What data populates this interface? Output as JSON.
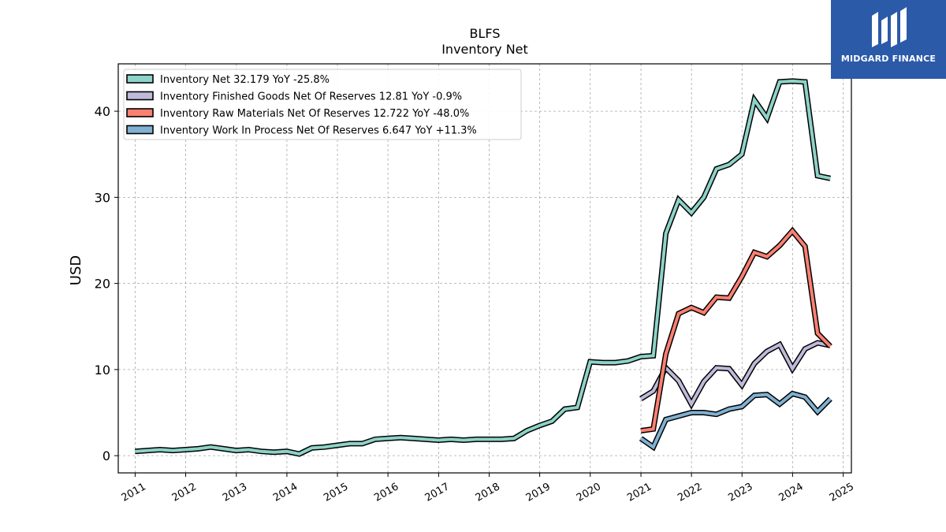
{
  "chart_data": {
    "type": "line",
    "title": "BLFS",
    "subtitle": "Inventory Net",
    "xlabel": "",
    "ylabel": "USD",
    "xlim": [
      "2010-09-01",
      "2025-03-01"
    ],
    "ylim": [
      -2,
      45.5
    ],
    "x_ticks": [
      "2011",
      "2012",
      "2013",
      "2014",
      "2015",
      "2016",
      "2017",
      "2018",
      "2019",
      "2020",
      "2021",
      "2022",
      "2023",
      "2024",
      "2025"
    ],
    "y_ticks": [
      0,
      10,
      20,
      30,
      40
    ],
    "grid": true,
    "legend_position": "upper-left",
    "series": [
      {
        "name": "Inventory Net",
        "legend": "Inventory Net  32.179 YoY -25.8%",
        "color": "#8dd3c7",
        "points": [
          [
            "2010-12-31",
            0.5
          ],
          [
            "2011-03-31",
            0.6
          ],
          [
            "2011-06-30",
            0.7
          ],
          [
            "2011-09-30",
            0.6
          ],
          [
            "2011-12-31",
            0.7
          ],
          [
            "2012-03-31",
            0.8
          ],
          [
            "2012-06-30",
            1.0
          ],
          [
            "2012-09-30",
            0.8
          ],
          [
            "2012-12-31",
            0.6
          ],
          [
            "2013-03-31",
            0.7
          ],
          [
            "2013-06-30",
            0.5
          ],
          [
            "2013-09-30",
            0.4
          ],
          [
            "2013-12-31",
            0.5
          ],
          [
            "2014-03-31",
            0.2
          ],
          [
            "2014-06-30",
            0.9
          ],
          [
            "2014-09-30",
            1.0
          ],
          [
            "2014-12-31",
            1.2
          ],
          [
            "2015-03-31",
            1.4
          ],
          [
            "2015-06-30",
            1.4
          ],
          [
            "2015-09-30",
            1.9
          ],
          [
            "2015-12-31",
            2.0
          ],
          [
            "2016-03-31",
            2.1
          ],
          [
            "2016-06-30",
            2.0
          ],
          [
            "2016-09-30",
            1.9
          ],
          [
            "2016-12-31",
            1.8
          ],
          [
            "2017-03-31",
            1.9
          ],
          [
            "2017-06-30",
            1.8
          ],
          [
            "2017-09-30",
            1.9
          ],
          [
            "2017-12-31",
            1.9
          ],
          [
            "2018-03-31",
            1.9
          ],
          [
            "2018-06-30",
            2.0
          ],
          [
            "2018-09-30",
            2.9
          ],
          [
            "2018-12-31",
            3.5
          ],
          [
            "2019-03-31",
            4.0
          ],
          [
            "2019-06-30",
            5.4
          ],
          [
            "2019-09-30",
            5.6
          ],
          [
            "2019-12-31",
            10.9
          ],
          [
            "2020-03-31",
            10.8
          ],
          [
            "2020-06-30",
            10.8
          ],
          [
            "2020-09-30",
            11.0
          ],
          [
            "2020-12-31",
            11.5
          ],
          [
            "2021-03-31",
            11.6
          ],
          [
            "2021-06-30",
            25.8
          ],
          [
            "2021-09-30",
            29.7
          ],
          [
            "2021-12-31",
            28.2
          ],
          [
            "2022-03-31",
            30.0
          ],
          [
            "2022-06-30",
            33.3
          ],
          [
            "2022-09-30",
            33.8
          ],
          [
            "2022-12-31",
            35.0
          ],
          [
            "2023-03-31",
            41.3
          ],
          [
            "2023-06-30",
            39.2
          ],
          [
            "2023-09-30",
            43.4
          ],
          [
            "2023-12-31",
            43.5
          ],
          [
            "2024-03-31",
            43.4
          ],
          [
            "2024-06-30",
            32.5
          ],
          [
            "2024-09-30",
            32.2
          ]
        ]
      },
      {
        "name": "Inventory Finished Goods Net Of Reserves",
        "legend": "Inventory Finished Goods Net Of Reserves  12.81 YoY -0.9%",
        "color": "#bebada",
        "points": [
          [
            "2020-12-31",
            6.6
          ],
          [
            "2021-03-31",
            7.5
          ],
          [
            "2021-06-30",
            10.2
          ],
          [
            "2021-09-30",
            8.7
          ],
          [
            "2021-12-31",
            6.0
          ],
          [
            "2022-03-31",
            8.6
          ],
          [
            "2022-06-30",
            10.2
          ],
          [
            "2022-09-30",
            10.1
          ],
          [
            "2022-12-31",
            8.2
          ],
          [
            "2023-03-31",
            10.7
          ],
          [
            "2023-06-30",
            12.1
          ],
          [
            "2023-09-30",
            12.9
          ],
          [
            "2023-12-31",
            10.1
          ],
          [
            "2024-03-31",
            12.4
          ],
          [
            "2024-06-30",
            13.1
          ],
          [
            "2024-09-30",
            12.8
          ]
        ]
      },
      {
        "name": "Inventory Raw Materials Net Of Reserves",
        "legend": "Inventory Raw Materials Net Of Reserves  12.722 YoY -48.0%",
        "color": "#fb8072",
        "points": [
          [
            "2020-12-31",
            2.9
          ],
          [
            "2021-03-31",
            3.1
          ],
          [
            "2021-06-30",
            11.8
          ],
          [
            "2021-09-30",
            16.5
          ],
          [
            "2021-12-31",
            17.2
          ],
          [
            "2022-03-31",
            16.6
          ],
          [
            "2022-06-30",
            18.4
          ],
          [
            "2022-09-30",
            18.3
          ],
          [
            "2022-12-31",
            20.8
          ],
          [
            "2023-03-31",
            23.6
          ],
          [
            "2023-06-30",
            23.1
          ],
          [
            "2023-09-30",
            24.4
          ],
          [
            "2023-12-31",
            26.1
          ],
          [
            "2024-03-31",
            24.3
          ],
          [
            "2024-06-30",
            14.2
          ],
          [
            "2024-09-30",
            12.7
          ]
        ]
      },
      {
        "name": "Inventory Work In Process Net Of Reserves",
        "legend": "Inventory Work In Process Net Of Reserves  6.647 YoY +11.3%",
        "color": "#80b1d3",
        "points": [
          [
            "2020-12-31",
            2.0
          ],
          [
            "2021-03-31",
            1.0
          ],
          [
            "2021-06-30",
            4.2
          ],
          [
            "2021-09-30",
            4.6
          ],
          [
            "2021-12-31",
            5.0
          ],
          [
            "2022-03-31",
            5.0
          ],
          [
            "2022-06-30",
            4.8
          ],
          [
            "2022-09-30",
            5.4
          ],
          [
            "2022-12-31",
            5.7
          ],
          [
            "2023-03-31",
            7.0
          ],
          [
            "2023-06-30",
            7.1
          ],
          [
            "2023-09-30",
            6.0
          ],
          [
            "2023-12-31",
            7.2
          ],
          [
            "2024-03-31",
            6.8
          ],
          [
            "2024-06-30",
            5.1
          ],
          [
            "2024-09-30",
            6.6
          ]
        ]
      }
    ]
  },
  "logo": {
    "text": "MIDGARD FINANCE",
    "color": "#2b5aa8"
  }
}
